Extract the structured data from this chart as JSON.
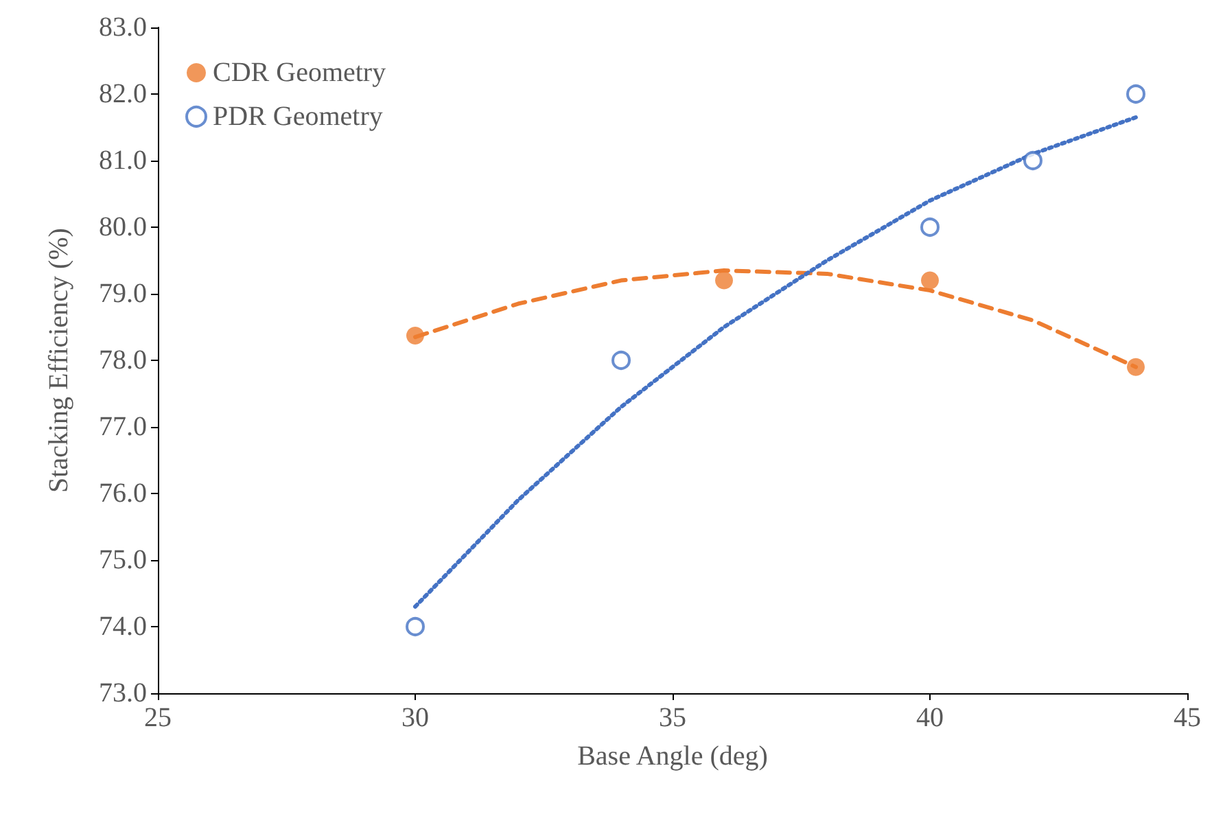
{
  "chart_data": {
    "type": "scatter",
    "xlabel": "Base Angle (deg)",
    "ylabel": "Stacking Efficiency (%)",
    "xlim": [
      25,
      45
    ],
    "xticks": [
      25,
      30,
      35,
      40,
      45
    ],
    "ylim": [
      73,
      83
    ],
    "yticks": [
      {
        "value": 73,
        "label": "73.0"
      },
      {
        "value": 74,
        "label": "74.0"
      },
      {
        "value": 75,
        "label": "75.0"
      },
      {
        "value": 76,
        "label": "76.0"
      },
      {
        "value": 77,
        "label": "77.0"
      },
      {
        "value": 78,
        "label": "78.0"
      },
      {
        "value": 79,
        "label": "79.0"
      },
      {
        "value": 80,
        "label": "80.0"
      },
      {
        "value": 81,
        "label": "81.0"
      },
      {
        "value": 82,
        "label": "82.0"
      },
      {
        "value": 83,
        "label": "83.0"
      }
    ],
    "grid": false,
    "legend": "top left",
    "series": [
      {
        "name": "CDR Geometry",
        "color": "#ed7d31",
        "marker": "circle",
        "x": [
          30,
          36,
          40,
          44
        ],
        "values": [
          78.37,
          79.2,
          79.2,
          77.9
        ]
      },
      {
        "name": "PDR Geometry",
        "color": "#4472c4",
        "marker": "circle-open",
        "x": [
          30,
          34,
          40,
          42,
          44
        ],
        "values": [
          74.0,
          78.0,
          80.0,
          81.0,
          82.0
        ]
      },
      {
        "type": "line",
        "color": "#ed7d31",
        "line_style": "dashed",
        "x": [
          30,
          32,
          34,
          36,
          38,
          40,
          42,
          44
        ],
        "values": [
          78.35,
          78.85,
          79.2,
          79.35,
          79.3,
          79.05,
          78.6,
          77.9
        ]
      },
      {
        "type": "line",
        "color": "#4472c4",
        "line_style": "dotted",
        "x": [
          30,
          32,
          34,
          36,
          38,
          40,
          42,
          44
        ],
        "values": [
          74.3,
          75.9,
          77.3,
          78.5,
          79.5,
          80.4,
          81.1,
          81.65
        ]
      }
    ]
  }
}
